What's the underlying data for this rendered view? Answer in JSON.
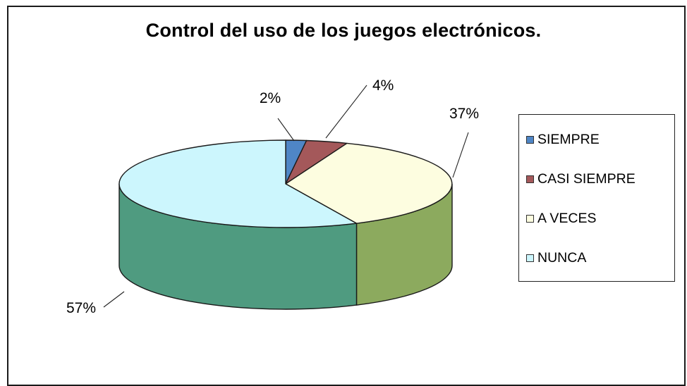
{
  "chart_data": {
    "type": "pie",
    "title": "Control del uso de los juegos electrónicos.",
    "categories": [
      "SIEMPRE",
      "CASI SIEMPRE",
      "A VECES",
      "NUNCA"
    ],
    "values": [
      2,
      4,
      37,
      57
    ],
    "labels": [
      "2%",
      "4%",
      "37%",
      "57%"
    ],
    "colors": {
      "top": [
        "#4f86c6",
        "#a4585a",
        "#fdfde0",
        "#ccf6fd"
      ],
      "side": [
        "#3a6a9e",
        "#7e3f42",
        "#8caa5e",
        "#4f9b80"
      ]
    },
    "legend_position": "right"
  }
}
